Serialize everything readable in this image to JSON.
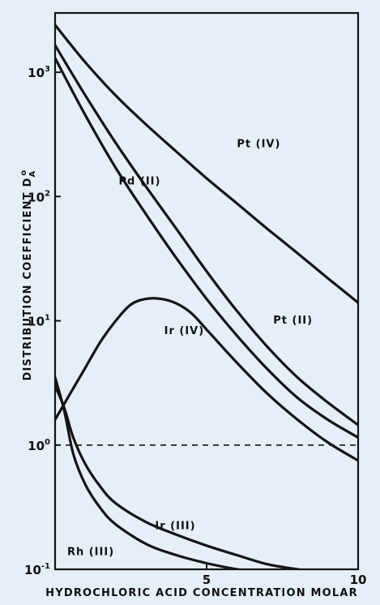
{
  "chart_data": {
    "type": "line",
    "title": "",
    "xlabel": "HYDROCHLORIC ACID CONCENTRATION MOLAR",
    "ylabel": "DISTRIBUTION COEFFICIENT D",
    "ylabel_superscript": "o",
    "ylabel_subscript": "A",
    "xlim": [
      0,
      10
    ],
    "ylim": [
      0.1,
      3000
    ],
    "yscale": "log",
    "grid": false,
    "x_ticks": [
      {
        "value": 5,
        "label": "5"
      },
      {
        "value": 10,
        "label": "10"
      }
    ],
    "y_ticks": [
      {
        "value": 0.1,
        "base": "10",
        "exp": "-1"
      },
      {
        "value": 1,
        "base": "10",
        "exp": "0"
      },
      {
        "value": 10,
        "base": "10",
        "exp": "1"
      },
      {
        "value": 100,
        "base": "10",
        "exp": "2"
      },
      {
        "value": 1000,
        "base": "10",
        "exp": "3"
      }
    ],
    "reference_line": {
      "y": 1,
      "style": "dashed"
    },
    "series": [
      {
        "name": "Pt (IV)",
        "label": "Pt (IV)",
        "label_at": [
          6.0,
          250
        ],
        "x": [
          0,
          1,
          2,
          3,
          4,
          5,
          6,
          7,
          8,
          9,
          10
        ],
        "values": [
          2400,
          1200,
          650,
          380,
          230,
          140,
          88,
          55,
          35,
          22,
          14
        ]
      },
      {
        "name": "Pd (II)",
        "label": "Pd (II)",
        "label_at": [
          2.1,
          125
        ],
        "x": [
          0,
          1,
          2,
          3,
          4,
          5,
          6,
          7,
          8,
          9,
          10
        ],
        "values": [
          1650,
          650,
          270,
          120,
          55,
          25,
          12,
          6.2,
          3.5,
          2.2,
          1.45
        ]
      },
      {
        "name": "Pt (II)",
        "label": "Pt (II)",
        "label_at": [
          7.2,
          9.5
        ],
        "x": [
          0,
          1,
          2,
          3,
          4,
          5,
          6,
          7,
          8,
          9,
          10
        ],
        "values": [
          1300,
          450,
          170,
          72,
          32,
          15,
          7.6,
          4.1,
          2.4,
          1.6,
          1.15
        ]
      },
      {
        "name": "Ir (IV)",
        "label": "Ir (IV)",
        "label_at": [
          3.6,
          7.8
        ],
        "x": [
          0,
          0.5,
          1,
          1.5,
          2,
          2.5,
          3,
          3.5,
          4,
          4.5,
          5,
          6,
          7,
          8,
          9,
          10
        ],
        "values": [
          1.6,
          2.6,
          4.2,
          6.8,
          10,
          13.5,
          15,
          15,
          13.8,
          11.5,
          8.5,
          4.6,
          2.6,
          1.6,
          1.05,
          0.75
        ]
      },
      {
        "name": "Ir (III)",
        "label": "Ir (III)",
        "label_at": [
          3.3,
          0.21
        ],
        "x": [
          0,
          0.3,
          0.6,
          1,
          1.5,
          2,
          3,
          4,
          5,
          6,
          7,
          8,
          9,
          10
        ],
        "values": [
          3.0,
          2.0,
          1.15,
          0.7,
          0.46,
          0.34,
          0.24,
          0.19,
          0.155,
          0.13,
          0.11,
          0.1,
          0.092,
          0.085
        ]
      },
      {
        "name": "Rh (III)",
        "label": "Rh (III)",
        "label_at": [
          0.4,
          0.13
        ],
        "x": [
          0,
          0.3,
          0.6,
          1,
          1.5,
          2,
          3,
          4,
          5,
          6,
          7,
          8,
          9,
          10
        ],
        "values": [
          3.5,
          1.9,
          0.85,
          0.48,
          0.31,
          0.23,
          0.16,
          0.13,
          0.112,
          0.1,
          0.092,
          0.086,
          0.082,
          0.078
        ]
      }
    ]
  },
  "colors": {
    "background": "#e6eff8",
    "ink": "#141414"
  }
}
